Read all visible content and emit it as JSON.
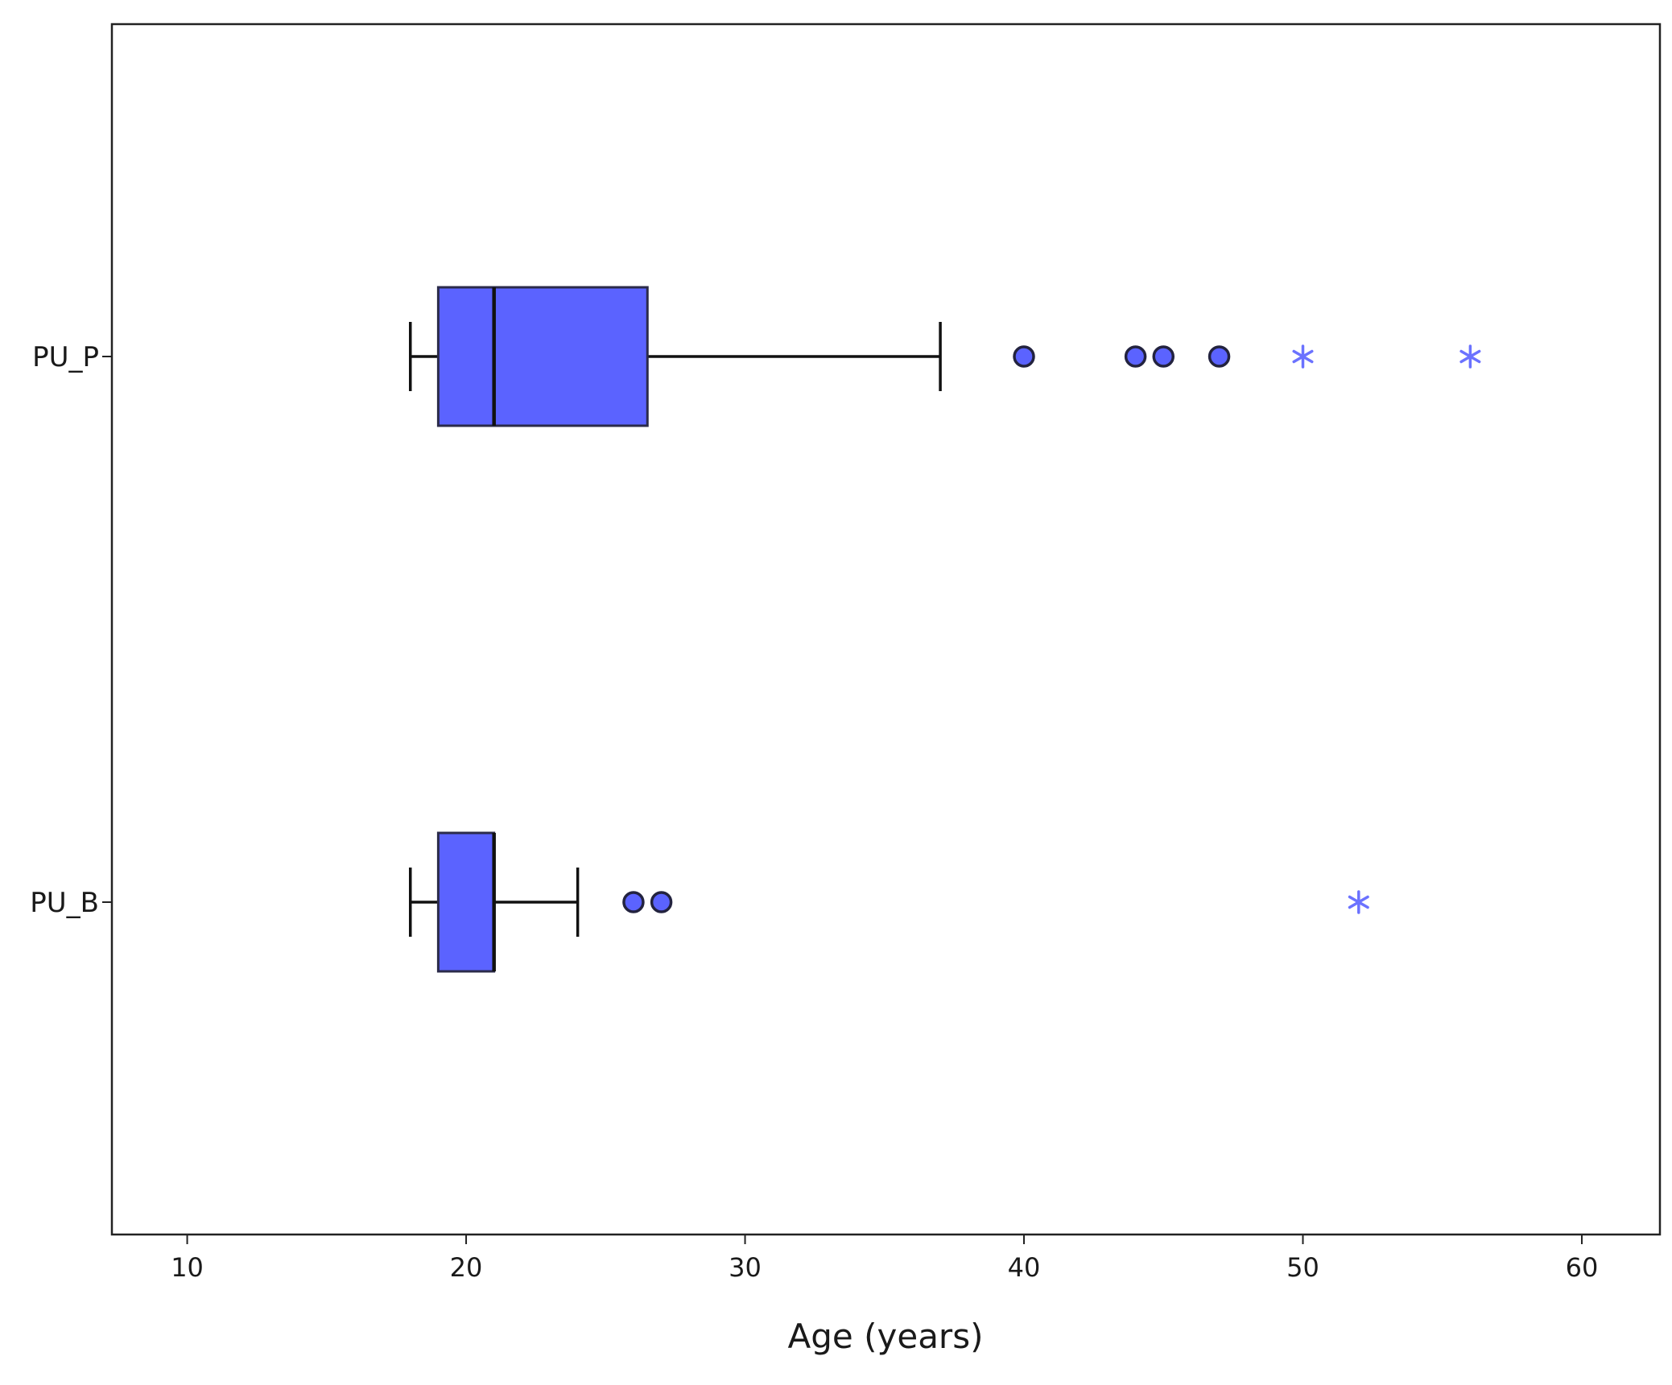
{
  "chart_data": {
    "type": "boxplot",
    "orientation": "horizontal",
    "title": "",
    "xlabel": "Age (years)",
    "ylabel": "",
    "xlim": [
      7.3,
      62.8
    ],
    "xticks": [
      10,
      20,
      30,
      40,
      50,
      60
    ],
    "xtick_labels": [
      "10",
      "20",
      "30",
      "40",
      "50",
      "60"
    ],
    "grid": false,
    "legend": "none",
    "box_color": "#5b63ff",
    "outlier_color": "#5b63ff",
    "extreme_color": "#6b72ff",
    "categories": [
      "PU_P",
      "PU_B"
    ],
    "boxes": [
      {
        "label": "PU_P",
        "whisker_low": 18,
        "q1": 19,
        "median": 21,
        "q3": 26.5,
        "whisker_high": 37,
        "outliers": [
          40,
          44,
          45,
          47
        ],
        "extremes": [
          50,
          56
        ]
      },
      {
        "label": "PU_B",
        "whisker_low": 18,
        "q1": 19,
        "median": 21,
        "q3": 21,
        "whisker_high": 24,
        "outliers": [
          26,
          27
        ],
        "extremes": [
          52
        ]
      }
    ]
  }
}
